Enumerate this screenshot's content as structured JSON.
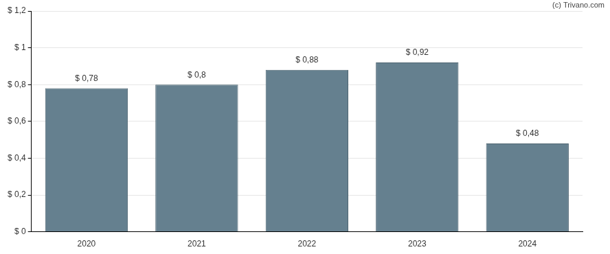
{
  "chart_data": {
    "type": "bar",
    "annotations": [
      "(c) Trivano.com"
    ],
    "categories": [
      "2020",
      "2021",
      "2022",
      "2023",
      "2024"
    ],
    "values": [
      0.78,
      0.8,
      0.88,
      0.92,
      0.48
    ],
    "value_labels": [
      "$ 0,78",
      "$ 0,8",
      "$ 0,88",
      "$ 0,92",
      "$ 0,48"
    ],
    "data_labels": true,
    "color": "#65808f",
    "ylim": [
      0,
      1.2
    ],
    "yticks": [
      {
        "value": 0,
        "label": "$ 0"
      },
      {
        "value": 0.2,
        "label": "$ 0,2"
      },
      {
        "value": 0.4,
        "label": "$ 0,4"
      },
      {
        "value": 0.6,
        "label": "$ 0,6"
      },
      {
        "value": 0.8,
        "label": "$ 0,8"
      },
      {
        "value": 1,
        "label": "$ 1"
      },
      {
        "value": 1.2,
        "label": "$ 1,2"
      }
    ],
    "grid": true
  }
}
